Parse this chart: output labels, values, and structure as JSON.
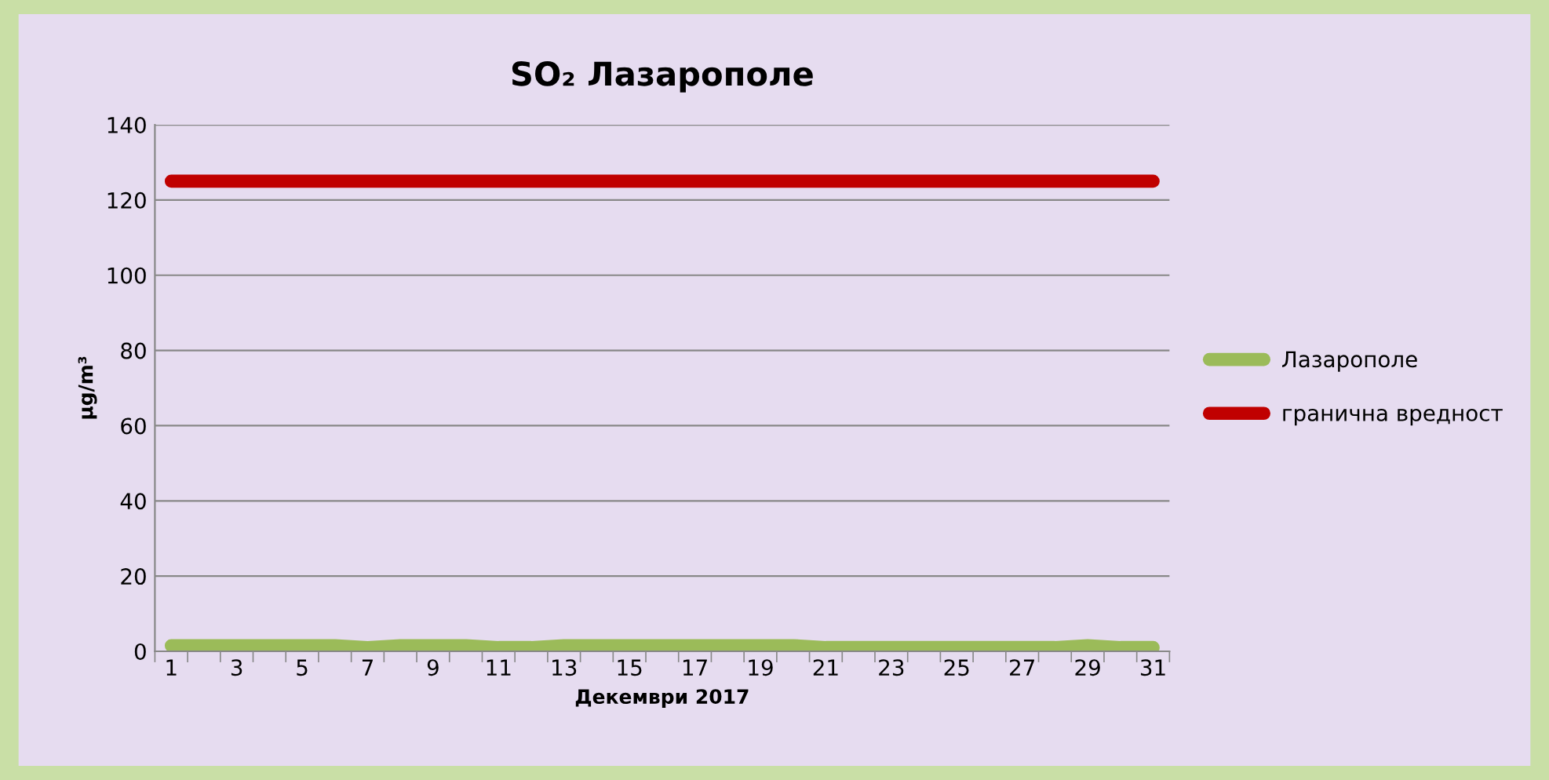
{
  "chart_data": {
    "type": "line",
    "title": "SO₂ Лазарополе",
    "xlabel": "Декември 2017",
    "ylabel": "µg/m³",
    "categories": [
      "1",
      null,
      "3",
      null,
      "5",
      null,
      "7",
      null,
      "9",
      null,
      "11",
      null,
      "13",
      null,
      "15",
      null,
      "17",
      null,
      "19",
      null,
      "21",
      null,
      "23",
      null,
      "25",
      null,
      "27",
      null,
      "29",
      null,
      "31"
    ],
    "series": [
      {
        "name": "Лазарополе",
        "color": "#9bbb59",
        "values": [
          1.5,
          1.5,
          1.5,
          1.5,
          1.5,
          1.5,
          1,
          1.5,
          1.5,
          1.5,
          1,
          1,
          1.5,
          1.5,
          1.5,
          1.5,
          1.5,
          1.5,
          1.5,
          1.5,
          1,
          1,
          1,
          1,
          1,
          1,
          1,
          1,
          1.5,
          1,
          1
        ]
      },
      {
        "name": "гранична вредност",
        "color": "#c00000",
        "values": [
          125,
          125,
          125,
          125,
          125,
          125,
          125,
          125,
          125,
          125,
          125,
          125,
          125,
          125,
          125,
          125,
          125,
          125,
          125,
          125,
          125,
          125,
          125,
          125,
          125,
          125,
          125,
          125,
          125,
          125,
          125
        ]
      }
    ],
    "ylim": [
      0,
      140
    ],
    "yticks": [
      0,
      20,
      40,
      60,
      80,
      100,
      120,
      140
    ],
    "grid": "y",
    "legend": "right",
    "marker": "none",
    "line_style": "solid"
  }
}
